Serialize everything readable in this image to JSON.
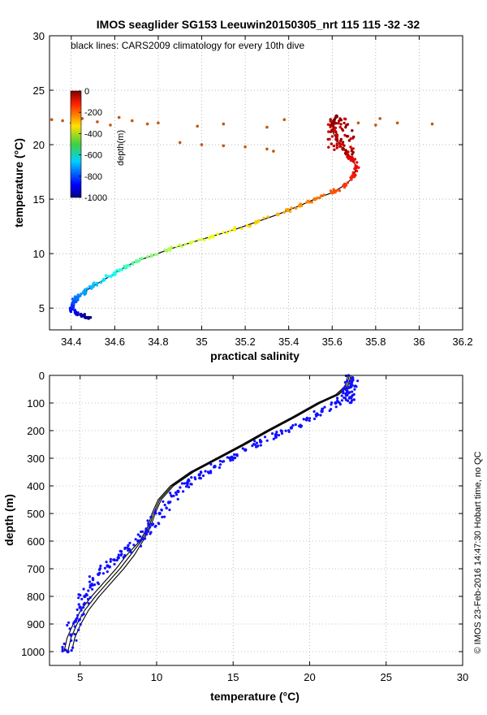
{
  "chart_data": [
    {
      "type": "scatter",
      "title": "IMOS seaglider SG153 Leeuwin20150305_nrt 115  115  -32  -32",
      "xlabel": "practical salinity",
      "ylabel": "temperature (°C)",
      "xlim": [
        34.3,
        36.2
      ],
      "ylim": [
        3,
        30
      ],
      "xticks": [
        "34.4",
        "34.6",
        "34.8",
        "35",
        "35.2",
        "35.4",
        "35.6",
        "35.8",
        "36",
        "36.2"
      ],
      "yticks": [
        "5",
        "10",
        "15",
        "20",
        "25",
        "30"
      ],
      "grid": true,
      "annotation": "black lines: CARS2009 climatology for every 10th dive",
      "colorbar": {
        "label": "depth(m)",
        "range": [
          -1000,
          0
        ],
        "ticks": [
          "0",
          "-200",
          "-400",
          "-600",
          "-800",
          "-1000"
        ]
      },
      "profile": {
        "columns": [
          "salinity",
          "temperature",
          "depth"
        ],
        "points": [
          [
            34.48,
            4.1,
            -1000
          ],
          [
            34.45,
            4.3,
            -960
          ],
          [
            34.42,
            4.6,
            -900
          ],
          [
            34.4,
            5.0,
            -850
          ],
          [
            34.41,
            5.5,
            -800
          ],
          [
            34.43,
            6.0,
            -760
          ],
          [
            34.46,
            6.5,
            -720
          ],
          [
            34.5,
            7.0,
            -690
          ],
          [
            34.55,
            7.6,
            -650
          ],
          [
            34.6,
            8.2,
            -610
          ],
          [
            34.65,
            8.8,
            -570
          ],
          [
            34.7,
            9.3,
            -530
          ],
          [
            34.77,
            9.8,
            -490
          ],
          [
            34.85,
            10.4,
            -450
          ],
          [
            34.95,
            11.0,
            -420
          ],
          [
            35.05,
            11.6,
            -390
          ],
          [
            35.15,
            12.2,
            -360
          ],
          [
            35.25,
            12.9,
            -330
          ],
          [
            35.35,
            13.6,
            -300
          ],
          [
            35.45,
            14.4,
            -270
          ],
          [
            35.52,
            15.0,
            -240
          ],
          [
            35.6,
            15.6,
            -210
          ],
          [
            35.66,
            16.3,
            -180
          ],
          [
            35.7,
            17.1,
            -150
          ],
          [
            35.71,
            18.0,
            -120
          ],
          [
            35.69,
            18.8,
            -100
          ],
          [
            35.65,
            19.6,
            -80
          ],
          [
            35.62,
            20.5,
            -60
          ],
          [
            35.6,
            21.3,
            -40
          ],
          [
            35.61,
            22.0,
            -20
          ],
          [
            35.62,
            22.6,
            0
          ]
        ]
      },
      "surface_scatter": {
        "columns": [
          "salinity",
          "temperature"
        ],
        "points": [
          [
            34.31,
            22.3
          ],
          [
            34.36,
            22.2
          ],
          [
            34.4,
            22.0
          ],
          [
            34.45,
            22.4
          ],
          [
            34.52,
            22.1
          ],
          [
            34.58,
            21.8
          ],
          [
            34.62,
            22.5
          ],
          [
            34.68,
            22.2
          ],
          [
            34.75,
            21.9
          ],
          [
            34.8,
            22.0
          ],
          [
            34.98,
            21.7
          ],
          [
            35.1,
            21.9
          ],
          [
            35.3,
            21.6
          ],
          [
            35.38,
            22.3
          ],
          [
            35.82,
            22.4
          ],
          [
            35.9,
            22.0
          ],
          [
            36.06,
            21.9
          ],
          [
            34.9,
            20.2
          ],
          [
            35.0,
            20.0
          ],
          [
            35.1,
            19.9
          ],
          [
            35.2,
            19.8
          ],
          [
            35.3,
            19.6
          ],
          [
            35.33,
            19.4
          ],
          [
            35.72,
            22.0
          ],
          [
            35.8,
            21.8
          ]
        ]
      }
    },
    {
      "type": "scatter",
      "xlabel": "temperature (°C)",
      "ylabel": "depth (m)",
      "xlim": [
        3,
        30
      ],
      "ylim": [
        1050,
        0
      ],
      "xticks": [
        "5",
        "10",
        "15",
        "20",
        "25",
        "30"
      ],
      "yticks": [
        "0",
        "100",
        "200",
        "300",
        "400",
        "500",
        "600",
        "700",
        "800",
        "900",
        "1000"
      ],
      "grid": true,
      "climatology": {
        "columns": [
          "temperature",
          "depth"
        ],
        "points": [
          [
            4.2,
            1000
          ],
          [
            4.4,
            950
          ],
          [
            4.8,
            900
          ],
          [
            5.3,
            850
          ],
          [
            6.0,
            800
          ],
          [
            6.8,
            750
          ],
          [
            7.6,
            700
          ],
          [
            8.3,
            650
          ],
          [
            9.0,
            600
          ],
          [
            9.5,
            550
          ],
          [
            9.8,
            500
          ],
          [
            10.2,
            450
          ],
          [
            11.0,
            400
          ],
          [
            12.3,
            350
          ],
          [
            14.0,
            300
          ],
          [
            15.7,
            250
          ],
          [
            17.3,
            200
          ],
          [
            19.0,
            150
          ],
          [
            20.6,
            100
          ],
          [
            21.8,
            70
          ],
          [
            22.4,
            40
          ],
          [
            22.6,
            0
          ]
        ]
      },
      "glider": {
        "columns": [
          "temperature",
          "depth"
        ],
        "points": [
          [
            4.2,
            1000
          ],
          [
            4.4,
            940
          ],
          [
            4.7,
            890
          ],
          [
            5.0,
            840
          ],
          [
            5.3,
            800
          ],
          [
            5.7,
            760
          ],
          [
            6.2,
            720
          ],
          [
            6.8,
            690
          ],
          [
            7.5,
            660
          ],
          [
            8.2,
            630
          ],
          [
            8.8,
            600
          ],
          [
            9.3,
            570
          ],
          [
            9.7,
            540
          ],
          [
            10.2,
            500
          ],
          [
            10.8,
            460
          ],
          [
            11.4,
            420
          ],
          [
            12.0,
            390
          ],
          [
            12.8,
            360
          ],
          [
            13.8,
            330
          ],
          [
            14.8,
            300
          ],
          [
            15.8,
            270
          ],
          [
            16.8,
            240
          ],
          [
            17.8,
            215
          ],
          [
            18.8,
            190
          ],
          [
            19.8,
            160
          ],
          [
            20.8,
            130
          ],
          [
            21.7,
            100
          ],
          [
            22.4,
            70
          ],
          [
            22.7,
            40
          ],
          [
            22.8,
            10
          ]
        ]
      },
      "side_text": "© IMOS 23-Feb-2016 14:47:30 Hobart time, no QC"
    }
  ]
}
